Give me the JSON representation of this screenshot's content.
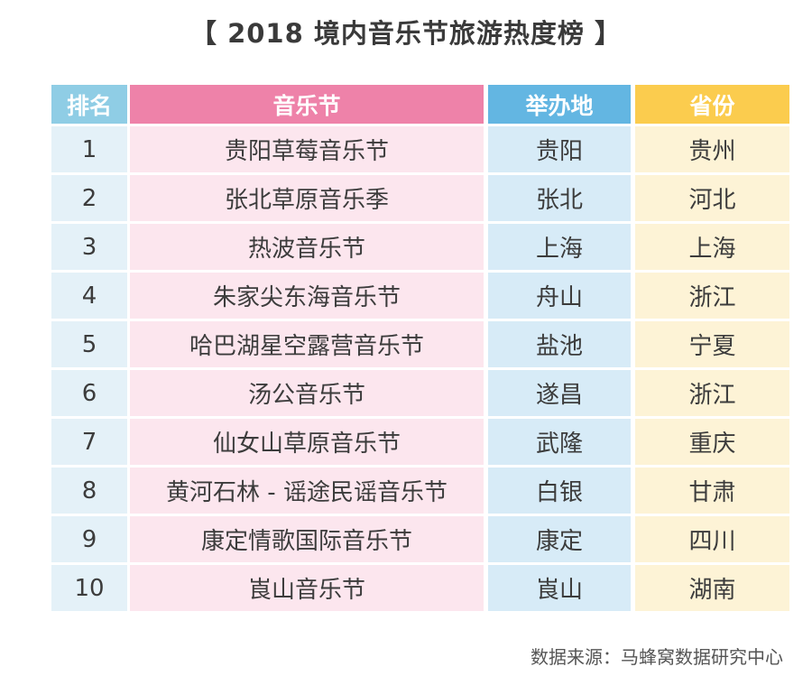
{
  "title": "【 2018 境内音乐节旅游热度榜 】",
  "source": "数据来源：马蜂窝数据研究中心",
  "colors": {
    "rank_header": "#8fcde5",
    "festival_header": "#ee82a9",
    "city_header": "#63b6e2",
    "province_header": "#fbcc4e"
  },
  "chart_data": {
    "type": "table",
    "title": "【 2018 境内音乐节旅游热度榜 】",
    "columns": [
      "排名",
      "音乐节",
      "举办地",
      "省份"
    ],
    "rows": [
      [
        "1",
        "贵阳草莓音乐节",
        "贵阳",
        "贵州"
      ],
      [
        "2",
        "张北草原音乐季",
        "张北",
        "河北"
      ],
      [
        "3",
        "热波音乐节",
        "上海",
        "上海"
      ],
      [
        "4",
        "朱家尖东海音乐节",
        "舟山",
        "浙江"
      ],
      [
        "5",
        "哈巴湖星空露营音乐节",
        "盐池",
        "宁夏"
      ],
      [
        "6",
        "汤公音乐节",
        "遂昌",
        "浙江"
      ],
      [
        "7",
        "仙女山草原音乐节",
        "武隆",
        "重庆"
      ],
      [
        "8",
        "黄河石林 - 谣途民谣音乐节",
        "白银",
        "甘肃"
      ],
      [
        "9",
        "康定情歌国际音乐节",
        "康定",
        "四川"
      ],
      [
        "10",
        "崀山音乐节",
        "崀山",
        "湖南"
      ]
    ]
  }
}
